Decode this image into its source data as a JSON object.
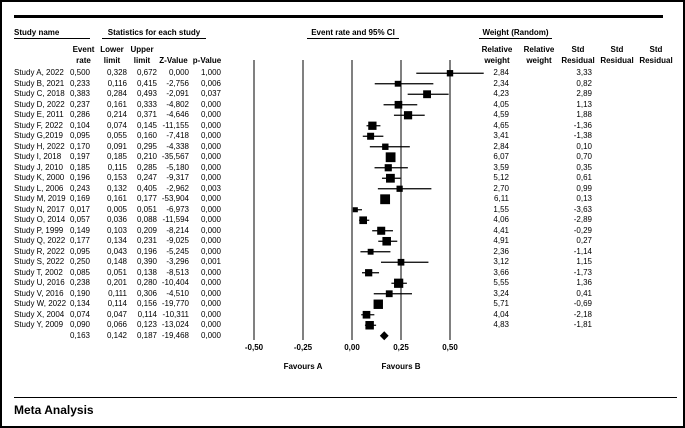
{
  "headers": {
    "study_name": "Study name",
    "stats_title": "Statistics for each study",
    "plot_title": "Event rate and 95% CI",
    "weight_title": "Weight (Random)",
    "cols": {
      "event": [
        "Event",
        "rate"
      ],
      "lower": [
        "Lower",
        "limit"
      ],
      "upper": [
        "Upper",
        "limit"
      ],
      "z": [
        "",
        "Z-Value"
      ],
      "p": [
        "",
        "p-Value"
      ],
      "relw1": [
        "Relative",
        "weight"
      ],
      "relw2": [
        "Relative",
        "weight"
      ],
      "stdres1": [
        "Std",
        "Residual"
      ],
      "stdres2": [
        "Std",
        "Residual"
      ],
      "stdres3": [
        "Std",
        "Residual"
      ]
    }
  },
  "table": {
    "rows": [
      {
        "name": "Study A, 2022",
        "event": "0,500",
        "lower": "0,328",
        "upper": "0,672",
        "z": "0,000",
        "p": "1,000",
        "rel_weight": "2,84",
        "std_residual": "3,33"
      },
      {
        "name": "Study B, 2021",
        "event": "0,233",
        "lower": "0,116",
        "upper": "0,415",
        "z": "-2,756",
        "p": "0,006",
        "rel_weight": "2,34",
        "std_residual": "0,82"
      },
      {
        "name": "Study C, 2018",
        "event": "0,383",
        "lower": "0,284",
        "upper": "0,493",
        "z": "-2,091",
        "p": "0,037",
        "rel_weight": "4,23",
        "std_residual": "2,89"
      },
      {
        "name": "Study D, 2022",
        "event": "0,237",
        "lower": "0,161",
        "upper": "0,333",
        "z": "-4,802",
        "p": "0,000",
        "rel_weight": "4,05",
        "std_residual": "1,13"
      },
      {
        "name": "Study E, 2011",
        "event": "0,286",
        "lower": "0,214",
        "upper": "0,371",
        "z": "-4,646",
        "p": "0,000",
        "rel_weight": "4,59",
        "std_residual": "1,88"
      },
      {
        "name": "Study F, 2022",
        "event": "0,104",
        "lower": "0,074",
        "upper": "0,145",
        "z": "-11,155",
        "p": "0,000",
        "rel_weight": "4,65",
        "std_residual": "-1,36"
      },
      {
        "name": "Study G,2019",
        "event": "0,095",
        "lower": "0,055",
        "upper": "0,160",
        "z": "-7,418",
        "p": "0,000",
        "rel_weight": "3,41",
        "std_residual": "-1,38"
      },
      {
        "name": "Study H, 2022",
        "event": "0,170",
        "lower": "0,091",
        "upper": "0,295",
        "z": "-4,338",
        "p": "0,000",
        "rel_weight": "2,84",
        "std_residual": "0,10"
      },
      {
        "name": "Study I, 2018",
        "event": "0,197",
        "lower": "0,185",
        "upper": "0,210",
        "z": "-35,567",
        "p": "0,000",
        "rel_weight": "6,07",
        "std_residual": "0,70"
      },
      {
        "name": "Study J, 2010",
        "event": "0,185",
        "lower": "0,115",
        "upper": "0,285",
        "z": "-5,180",
        "p": "0,000",
        "rel_weight": "3,59",
        "std_residual": "0,35"
      },
      {
        "name": "Study K, 2000",
        "event": "0,196",
        "lower": "0,153",
        "upper": "0,247",
        "z": "-9,317",
        "p": "0,000",
        "rel_weight": "5,12",
        "std_residual": "0,61"
      },
      {
        "name": "Study L, 2006",
        "event": "0,243",
        "lower": "0,132",
        "upper": "0,405",
        "z": "-2,962",
        "p": "0,003",
        "rel_weight": "2,70",
        "std_residual": "0,99"
      },
      {
        "name": "Study M, 2019",
        "event": "0,169",
        "lower": "0,161",
        "upper": "0,177",
        "z": "-53,904",
        "p": "0,000",
        "rel_weight": "6,11",
        "std_residual": "0,13"
      },
      {
        "name": "Study N, 2017",
        "event": "0,017",
        "lower": "0,005",
        "upper": "0,051",
        "z": "-6,973",
        "p": "0,000",
        "rel_weight": "1,55",
        "std_residual": "-3,63"
      },
      {
        "name": "Study O, 2014",
        "event": "0,057",
        "lower": "0,036",
        "upper": "0,088",
        "z": "-11,594",
        "p": "0,000",
        "rel_weight": "4,06",
        "std_residual": "-2,89"
      },
      {
        "name": "Study P, 1999",
        "event": "0,149",
        "lower": "0,103",
        "upper": "0,209",
        "z": "-8,214",
        "p": "0,000",
        "rel_weight": "4,41",
        "std_residual": "-0,29"
      },
      {
        "name": "Study Q, 2022",
        "event": "0,177",
        "lower": "0,134",
        "upper": "0,231",
        "z": "-9,025",
        "p": "0,000",
        "rel_weight": "4,91",
        "std_residual": "0,27"
      },
      {
        "name": "Study R, 2022",
        "event": "0,095",
        "lower": "0,043",
        "upper": "0,196",
        "z": "-5,245",
        "p": "0,000",
        "rel_weight": "2,36",
        "std_residual": "-1,14"
      },
      {
        "name": "Study S, 2022",
        "event": "0,250",
        "lower": "0,148",
        "upper": "0,390",
        "z": "-3,296",
        "p": "0,001",
        "rel_weight": "3,12",
        "std_residual": "1,15"
      },
      {
        "name": "Study T, 2002",
        "event": "0,085",
        "lower": "0,051",
        "upper": "0,138",
        "z": "-8,513",
        "p": "0,000",
        "rel_weight": "3,66",
        "std_residual": "-1,73"
      },
      {
        "name": "Study U, 2016",
        "event": "0,238",
        "lower": "0,201",
        "upper": "0,280",
        "z": "-10,404",
        "p": "0,000",
        "rel_weight": "5,55",
        "std_residual": "1,36"
      },
      {
        "name": "Study V, 2016",
        "event": "0,190",
        "lower": "0,111",
        "upper": "0,306",
        "z": "-4,510",
        "p": "0,000",
        "rel_weight": "3,24",
        "std_residual": "0,41"
      },
      {
        "name": "Study W, 2022",
        "event": "0,134",
        "lower": "0,114",
        "upper": "0,156",
        "z": "-19,770",
        "p": "0,000",
        "rel_weight": "5,71",
        "std_residual": "-0,69"
      },
      {
        "name": "Study X, 2004",
        "event": "0,074",
        "lower": "0,047",
        "upper": "0,114",
        "z": "-10,311",
        "p": "0,000",
        "rel_weight": "4,04",
        "std_residual": "-2,18"
      },
      {
        "name": "Study Y, 2009",
        "event": "0,090",
        "lower": "0,066",
        "upper": "0,123",
        "z": "-13,024",
        "p": "0,000",
        "rel_weight": "4,83",
        "std_residual": "-1,81"
      },
      {
        "name": "",
        "event": "0,163",
        "lower": "0,142",
        "upper": "0,187",
        "z": "-19,468",
        "p": "0,000",
        "rel_weight": "",
        "std_residual": "",
        "is_total": true
      }
    ]
  },
  "chart_data": {
    "type": "forest",
    "title": "Event rate and 95% CI",
    "x_ticks": [
      -0.5,
      -0.25,
      0,
      0.25,
      0.5
    ],
    "x_tick_labels": [
      "-0,50",
      "-0,25",
      "0,00",
      "0,25",
      "0,50"
    ],
    "xlim": [
      -0.5,
      0.5
    ],
    "favours_left": "Favours A",
    "favours_right": "Favours B",
    "grid": "vertical-lines-at-ticks",
    "marker_color": "#000000",
    "studies": [
      {
        "name": "Study A, 2022",
        "event_rate": 0.5,
        "ci_low": 0.328,
        "ci_high": 0.672,
        "weight": 2.84
      },
      {
        "name": "Study B, 2021",
        "event_rate": 0.233,
        "ci_low": 0.116,
        "ci_high": 0.415,
        "weight": 2.34
      },
      {
        "name": "Study C, 2018",
        "event_rate": 0.383,
        "ci_low": 0.284,
        "ci_high": 0.493,
        "weight": 4.23
      },
      {
        "name": "Study D, 2022",
        "event_rate": 0.237,
        "ci_low": 0.161,
        "ci_high": 0.333,
        "weight": 4.05
      },
      {
        "name": "Study E, 2011",
        "event_rate": 0.286,
        "ci_low": 0.214,
        "ci_high": 0.371,
        "weight": 4.59
      },
      {
        "name": "Study F, 2022",
        "event_rate": 0.104,
        "ci_low": 0.074,
        "ci_high": 0.145,
        "weight": 4.65
      },
      {
        "name": "Study G,2019",
        "event_rate": 0.095,
        "ci_low": 0.055,
        "ci_high": 0.16,
        "weight": 3.41
      },
      {
        "name": "Study H, 2022",
        "event_rate": 0.17,
        "ci_low": 0.091,
        "ci_high": 0.295,
        "weight": 2.84
      },
      {
        "name": "Study I, 2018",
        "event_rate": 0.197,
        "ci_low": 0.185,
        "ci_high": 0.21,
        "weight": 6.07
      },
      {
        "name": "Study J, 2010",
        "event_rate": 0.185,
        "ci_low": 0.115,
        "ci_high": 0.285,
        "weight": 3.59
      },
      {
        "name": "Study K, 2000",
        "event_rate": 0.196,
        "ci_low": 0.153,
        "ci_high": 0.247,
        "weight": 5.12
      },
      {
        "name": "Study L, 2006",
        "event_rate": 0.243,
        "ci_low": 0.132,
        "ci_high": 0.405,
        "weight": 2.7
      },
      {
        "name": "Study M, 2019",
        "event_rate": 0.169,
        "ci_low": 0.161,
        "ci_high": 0.177,
        "weight": 6.11
      },
      {
        "name": "Study N, 2017",
        "event_rate": 0.017,
        "ci_low": 0.005,
        "ci_high": 0.051,
        "weight": 1.55
      },
      {
        "name": "Study O, 2014",
        "event_rate": 0.057,
        "ci_low": 0.036,
        "ci_high": 0.088,
        "weight": 4.06
      },
      {
        "name": "Study P, 1999",
        "event_rate": 0.149,
        "ci_low": 0.103,
        "ci_high": 0.209,
        "weight": 4.41
      },
      {
        "name": "Study Q, 2022",
        "event_rate": 0.177,
        "ci_low": 0.134,
        "ci_high": 0.231,
        "weight": 4.91
      },
      {
        "name": "Study R, 2022",
        "event_rate": 0.095,
        "ci_low": 0.043,
        "ci_high": 0.196,
        "weight": 2.36
      },
      {
        "name": "Study S, 2022",
        "event_rate": 0.25,
        "ci_low": 0.148,
        "ci_high": 0.39,
        "weight": 3.12
      },
      {
        "name": "Study T, 2002",
        "event_rate": 0.085,
        "ci_low": 0.051,
        "ci_high": 0.138,
        "weight": 3.66
      },
      {
        "name": "Study U, 2016",
        "event_rate": 0.238,
        "ci_low": 0.201,
        "ci_high": 0.28,
        "weight": 5.55
      },
      {
        "name": "Study V, 2016",
        "event_rate": 0.19,
        "ci_low": 0.111,
        "ci_high": 0.306,
        "weight": 3.24
      },
      {
        "name": "Study W, 2022",
        "event_rate": 0.134,
        "ci_low": 0.114,
        "ci_high": 0.156,
        "weight": 5.71
      },
      {
        "name": "Study X, 2004",
        "event_rate": 0.074,
        "ci_low": 0.047,
        "ci_high": 0.114,
        "weight": 4.04
      },
      {
        "name": "Study Y, 2009",
        "event_rate": 0.09,
        "ci_low": 0.066,
        "ci_high": 0.123,
        "weight": 4.83
      }
    ],
    "overall": {
      "event_rate": 0.163,
      "ci_low": 0.142,
      "ci_high": 0.187
    }
  },
  "footer": {
    "label": "Meta Analysis"
  }
}
